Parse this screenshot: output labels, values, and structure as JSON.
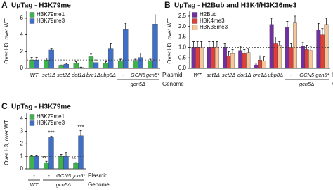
{
  "chart_data": [
    {
      "type": "bar",
      "panel": "A",
      "title": "UpTag - H3K79me",
      "y_label": "Over H3, over WT",
      "categories": [
        "WT",
        "set1Δ",
        "set2Δ",
        "dot1Δ",
        "bre1Δ",
        "ubp8Δ",
        "-",
        "GCN5",
        "gcn5*"
      ],
      "genome": [
        null,
        null,
        null,
        null,
        null,
        null,
        "gcn5Δ",
        null,
        null
      ],
      "row_labels": [
        "Plasmid",
        "Genome"
      ],
      "series": [
        {
          "name": "H3K79me1",
          "color": "#3cb44b",
          "values": [
            1,
            1,
            0.3,
            0.6,
            1.4,
            0.6,
            0.9,
            0.9,
            0.9
          ],
          "errors": [
            0.3,
            0.2,
            0.1,
            0.2,
            0.3,
            0.2,
            0.2,
            0.2,
            0.2
          ]
        },
        {
          "name": "H3K79me3",
          "color": "#3f6fc6",
          "values": [
            1,
            2.2,
            0.5,
            0.1,
            0.7,
            2.4,
            4.7,
            1.3,
            5.3
          ],
          "errors": [
            0.3,
            0.2,
            0.1,
            0.05,
            0.3,
            0.6,
            0.7,
            0.5,
            1.1
          ]
        }
      ],
      "ylim": [
        0,
        6.5
      ],
      "yticks": [
        0,
        2,
        4,
        6
      ],
      "reference_line": 1
    },
    {
      "type": "bar",
      "panel": "B",
      "title": "UpTag - H2Bub and H3K4/H3K36me3",
      "y_label": "Over H3, over WT",
      "categories": [
        "WT",
        "set1Δ",
        "set2Δ",
        "dot1Δ",
        "bre1Δ",
        "ubp8Δ",
        "-",
        "GCN5",
        "gcn5*"
      ],
      "genome": [
        null,
        null,
        null,
        null,
        null,
        null,
        "gcn5Δ",
        null,
        null
      ],
      "row_labels": [
        "Plasmid",
        "Genome"
      ],
      "series": [
        {
          "name": "H2Bub",
          "color": "#7030a0",
          "values": [
            1,
            1,
            1,
            0.85,
            0.15,
            2.1,
            1.95,
            1.05,
            1.85
          ],
          "errors": [
            0.3,
            0.3,
            0.2,
            0.2,
            0.05,
            0.3,
            0.3,
            0.2,
            0.3
          ]
        },
        {
          "name": "H3K4me3",
          "color": "#e0403a",
          "values": [
            1,
            1,
            0.6,
            0.7,
            0.4,
            1.2,
            1,
            0.9,
            1.6
          ],
          "errors": [
            0.3,
            0.3,
            0.2,
            0.2,
            0.2,
            0.3,
            0.2,
            0.2,
            0.3
          ]
        },
        {
          "name": "H3K36me3",
          "color": "#f4c69a",
          "values": [
            1,
            1,
            0.7,
            0.75,
            0.35,
            1.1,
            2.2,
            0.85,
            2.1
          ],
          "errors": [
            0.3,
            0.3,
            0.2,
            0.2,
            0.2,
            0.2,
            0.3,
            0.2,
            0.3
          ]
        }
      ],
      "ylim": [
        0,
        2.6
      ],
      "yticks": [
        {
          "value": 0,
          "label": "0.0"
        },
        0.5,
        {
          "value": 1,
          "label": "1.0"
        },
        1.5,
        {
          "value": 2,
          "label": "2.0"
        },
        2.5
      ],
      "reference_line": 1
    },
    {
      "type": "bar",
      "panel": "C",
      "title": "UpTag - H3K79me",
      "y_label": "Over H3, over WT",
      "categories": [
        "-",
        "-",
        "GCN5",
        "gcn5*"
      ],
      "genome": [
        "WT",
        "gcn5Δ",
        null,
        null
      ],
      "row_labels": [
        "Plasmid",
        "Genome"
      ],
      "series": [
        {
          "name": "H3K79me1",
          "color": "#3cb44b",
          "values": [
            1,
            0.5,
            1,
            0.45
          ],
          "errors": [
            0.1,
            0.1,
            0.15,
            0.05
          ],
          "annotations": [
            null,
            "**",
            null,
            "**"
          ]
        },
        {
          "name": "H3K79me3",
          "color": "#3f6fc6",
          "values": [
            1,
            2.5,
            1,
            2.65
          ],
          "errors": [
            0.1,
            0.1,
            0.3,
            0.4
          ],
          "annotations": [
            null,
            "***",
            null,
            "***"
          ]
        }
      ],
      "ylim": [
        0,
        4.2
      ],
      "yticks": [
        0,
        1,
        2,
        3,
        4
      ],
      "reference_line": 1
    }
  ]
}
